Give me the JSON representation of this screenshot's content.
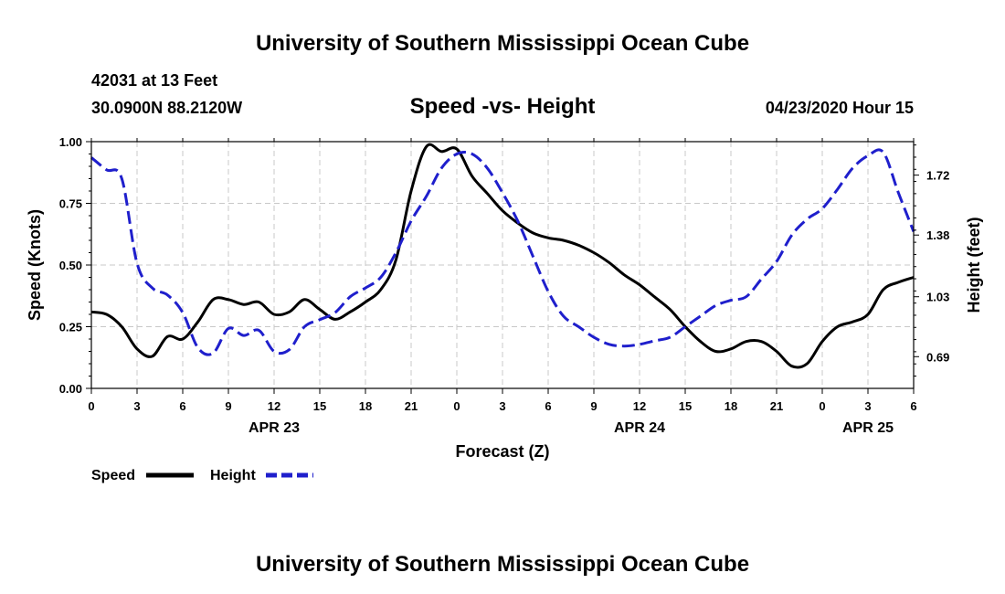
{
  "header": {
    "title": "University of Southern Mississippi Ocean Cube",
    "station": "42031 at 13 Feet",
    "coords": "30.0900N 88.2120W",
    "run": "04/23/2020 Hour 15"
  },
  "footer": {
    "title": "University of Southern Mississippi Ocean Cube"
  },
  "chart_data": {
    "type": "line",
    "title": "Speed -vs- Height",
    "xlabel": "Forecast (Z)",
    "ylabel": "Speed (Knots)",
    "y2label": "Height (feet)",
    "x_range_hours": [
      0,
      54
    ],
    "x_tick_labels": [
      "0",
      "3",
      "6",
      "9",
      "12",
      "15",
      "18",
      "21",
      "0",
      "3",
      "6",
      "9",
      "12",
      "15",
      "18",
      "21",
      "0",
      "3",
      "6"
    ],
    "date_labels": [
      {
        "hour": 12,
        "label": "APR 23"
      },
      {
        "hour": 36,
        "label": "APR 24"
      },
      {
        "hour": 51,
        "label": "APR 25"
      }
    ],
    "ylim": [
      0,
      1.0
    ],
    "y_ticks": [
      0.0,
      0.25,
      0.5,
      0.75,
      1.0
    ],
    "y_tick_labels": [
      "0.00",
      "0.25",
      "0.50",
      "0.75",
      "1.00"
    ],
    "y2lim": [
      0.51,
      1.91
    ],
    "y2_ticks": [
      0.69,
      1.03,
      1.38,
      1.72
    ],
    "y2_tick_labels": [
      "0.69",
      "1.03",
      "1.38",
      "1.72"
    ],
    "grid": true,
    "series": [
      {
        "name": "Speed",
        "axis": "left",
        "color": "#000000",
        "style": "solid",
        "x": [
          0,
          1,
          2,
          3,
          4,
          5,
          6,
          7,
          8,
          9,
          10,
          11,
          12,
          13,
          14,
          15,
          16,
          17,
          18,
          19,
          20,
          21,
          22,
          23,
          24,
          25,
          26,
          27,
          28,
          29,
          30,
          31,
          32,
          33,
          34,
          35,
          36,
          37,
          38,
          39,
          40,
          41,
          42,
          43,
          44,
          45,
          46,
          47,
          48,
          49,
          50,
          51,
          52,
          53,
          54
        ],
        "values": [
          0.31,
          0.3,
          0.25,
          0.16,
          0.13,
          0.21,
          0.2,
          0.27,
          0.36,
          0.36,
          0.34,
          0.35,
          0.3,
          0.31,
          0.36,
          0.32,
          0.28,
          0.31,
          0.35,
          0.4,
          0.52,
          0.8,
          0.98,
          0.96,
          0.97,
          0.86,
          0.79,
          0.72,
          0.67,
          0.63,
          0.61,
          0.6,
          0.58,
          0.55,
          0.51,
          0.46,
          0.42,
          0.37,
          0.32,
          0.25,
          0.19,
          0.15,
          0.16,
          0.19,
          0.19,
          0.15,
          0.09,
          0.1,
          0.19,
          0.25,
          0.27,
          0.3,
          0.4,
          0.43,
          0.45
        ]
      },
      {
        "name": "Height",
        "axis": "right",
        "color": "#1f1fcc",
        "style": "dashed",
        "x": [
          0,
          1,
          2,
          3,
          4,
          5,
          6,
          7,
          8,
          9,
          10,
          11,
          12,
          13,
          14,
          15,
          16,
          17,
          18,
          19,
          20,
          21,
          22,
          23,
          24,
          25,
          26,
          27,
          28,
          29,
          30,
          31,
          32,
          33,
          34,
          35,
          36,
          37,
          38,
          39,
          40,
          41,
          42,
          43,
          44,
          45,
          46,
          47,
          48,
          49,
          50,
          51,
          52,
          53,
          54
        ],
        "values": [
          1.82,
          1.75,
          1.7,
          1.22,
          1.08,
          1.04,
          0.94,
          0.74,
          0.71,
          0.85,
          0.81,
          0.84,
          0.72,
          0.73,
          0.86,
          0.9,
          0.94,
          1.03,
          1.08,
          1.14,
          1.28,
          1.46,
          1.6,
          1.76,
          1.84,
          1.84,
          1.76,
          1.62,
          1.46,
          1.26,
          1.06,
          0.92,
          0.86,
          0.8,
          0.76,
          0.75,
          0.76,
          0.78,
          0.8,
          0.86,
          0.92,
          0.98,
          1.01,
          1.03,
          1.13,
          1.23,
          1.38,
          1.47,
          1.53,
          1.64,
          1.76,
          1.83,
          1.85,
          1.62,
          1.4
        ]
      }
    ],
    "legend": [
      {
        "label": "Speed",
        "color": "#000000",
        "style": "solid"
      },
      {
        "label": "Height",
        "color": "#1f1fcc",
        "style": "dashed"
      }
    ],
    "legend_position": "bottom-left"
  }
}
